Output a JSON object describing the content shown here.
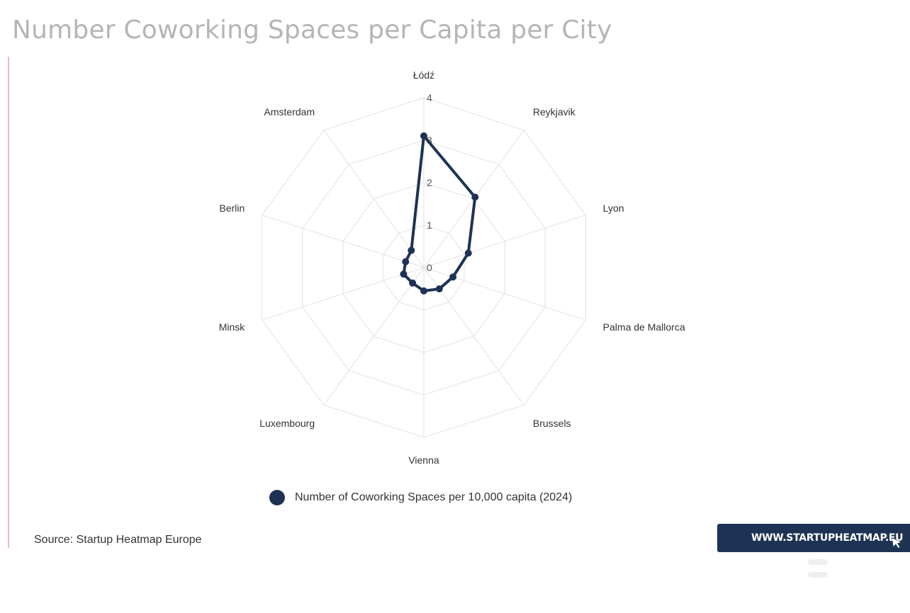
{
  "title": "Number Coworking Spaces per Capita per City",
  "source": "Source: Startup Heatmap Europe",
  "brand": {
    "url_label": "WWW.STARTUPHEATMAP.EU",
    "color": "#1e3354"
  },
  "legend_label": "Number of Coworking Spaces per 10,000 capita (2024)",
  "colors": {
    "series": "#1e3354",
    "grid": "#e2e2e2",
    "title": "#b5b5b5",
    "accent_line": "#e8b9cc"
  },
  "chart_data": {
    "type": "radar",
    "categories": [
      "Łódź",
      "Reykjavik",
      "Lyon",
      "Palma de Mallorca",
      "Brussels",
      "Vienna",
      "Luxembourg",
      "Minsk",
      "Berlin",
      "Amsterdam"
    ],
    "series": [
      {
        "name": "Number of Coworking Spaces per 10,000 capita (2024)",
        "values": [
          3.1,
          2.05,
          1.1,
          0.72,
          0.62,
          0.55,
          0.45,
          0.5,
          0.45,
          0.5
        ]
      }
    ],
    "rlim": [
      0,
      4
    ],
    "ticks": [
      "0",
      "1",
      "2",
      "3",
      "4"
    ],
    "grid": true,
    "legend_position": "bottom"
  }
}
